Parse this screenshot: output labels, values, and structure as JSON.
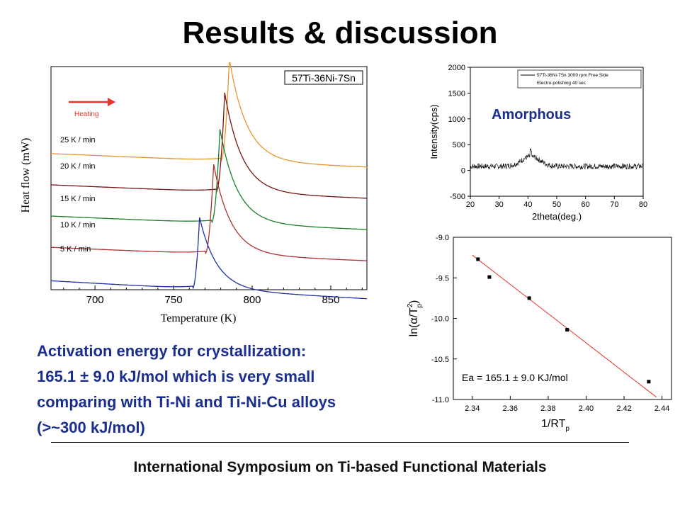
{
  "slide": {
    "title": "Results & discussion",
    "footer": "International Symposium on Ti-based Functional Materials",
    "body_lines": [
      "Activation energy for crystallization:",
      "165.1 ± 9.0 kJ/mol which is very small",
      "comparing with Ti-Ni and Ti-Ni-Cu alloys",
      "(>~300 kJ/mol)"
    ],
    "colors": {
      "body_text": "#1a2e8c",
      "accent_arrow": "#e8322a",
      "amorphous_label": "#1a2e8c"
    }
  },
  "chart_data": [
    {
      "type": "line",
      "legend_box": "57Ti-36Ni-7Sn",
      "annotation": "Heating",
      "arrow_icon": "right-arrow",
      "xlabel": "Temperature (K)",
      "ylabel": "Heat flow (mW)",
      "xlim": [
        672,
        873
      ],
      "xticks": [
        700,
        750,
        800,
        850
      ],
      "series": [
        {
          "name": "25 K / min",
          "color": "#e8962a",
          "onset": 780,
          "peak": 785.5,
          "height": 0.74,
          "baseline": 0.61,
          "slope": -0.0003
        },
        {
          "name": "20  K / min",
          "color": "#7a1414",
          "onset": 777,
          "peak": 782.5,
          "height": 0.72,
          "baseline": 0.47,
          "slope": -0.0003
        },
        {
          "name": "15  K / min",
          "color": "#1a7f2a",
          "onset": 774,
          "peak": 779.5,
          "height": 0.68,
          "baseline": 0.33,
          "slope": -0.0003
        },
        {
          "name": "10  K / min",
          "color": "#b03030",
          "onset": 770,
          "peak": 775.5,
          "height": 0.65,
          "baseline": 0.19,
          "slope": -0.0003
        },
        {
          "name": "5  K / min",
          "color": "#1f2fa8",
          "onset": 762,
          "peak": 766.5,
          "height": 0.52,
          "baseline": 0.04,
          "slope": -0.0004
        }
      ]
    },
    {
      "type": "line",
      "annotation": "Amorphous",
      "legend": [
        "57Ti-36Ni-7Sn 3000 rpm Free Side",
        "Electro-polishing 40 sec"
      ],
      "xlabel": "2theta(deg.)",
      "ylabel": "Intensity(cps)",
      "xlim": [
        20,
        80
      ],
      "ylim": [
        -500,
        2000
      ],
      "xticks": [
        20,
        30,
        40,
        50,
        60,
        70,
        80
      ],
      "yticks": [
        -500,
        0,
        500,
        1000,
        1500,
        2000
      ],
      "series": [
        {
          "baseline": 80,
          "peak_x": 41,
          "peak_height": 190,
          "noise": 55
        }
      ]
    },
    {
      "type": "scatter",
      "annotation": "Ea = 165.1 ± 9.0 KJ/mol",
      "xlabel": "1/RT",
      "xlabel_sub": "p",
      "ylabel": "ln(α/T",
      "ylabel_sup": "2",
      "ylabel_sub": "p",
      "ylabel_close": ")",
      "xlim": [
        2.33,
        2.445
      ],
      "ylim": [
        -11.0,
        -9.0
      ],
      "xticks": [
        2.34,
        2.36,
        2.38,
        2.4,
        2.42,
        2.44
      ],
      "yticks": [
        -11.0,
        -10.5,
        -10.0,
        -9.5,
        -9.0
      ],
      "points": [
        {
          "x": 2.343,
          "y": -9.27
        },
        {
          "x": 2.349,
          "y": -9.49
        },
        {
          "x": 2.37,
          "y": -9.75
        },
        {
          "x": 2.39,
          "y": -10.14
        },
        {
          "x": 2.433,
          "y": -10.78
        }
      ],
      "fit": {
        "x": [
          2.34,
          2.437
        ],
        "y": [
          -9.22,
          -10.97
        ],
        "color": "#e8322a"
      }
    }
  ]
}
